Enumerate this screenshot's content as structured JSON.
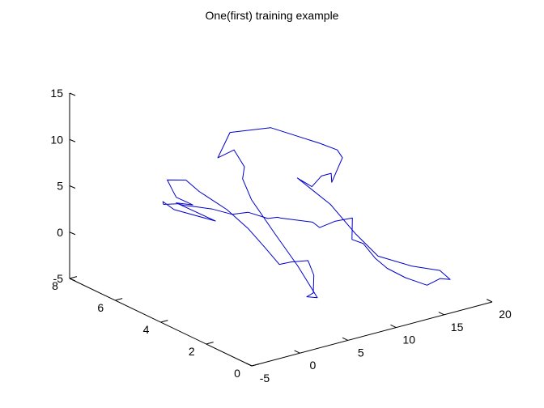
{
  "chart_data": {
    "type": "line",
    "title": "One(first) training example",
    "xlabel": "",
    "ylabel": "",
    "zlabel": "",
    "grid": false,
    "xlim": [
      -5,
      20
    ],
    "ylim": [
      0,
      8
    ],
    "zlim": [
      -5,
      15
    ],
    "x_ticks": [
      "-5",
      "0",
      "5",
      "10",
      "15",
      "20"
    ],
    "y_ticks": [
      "0",
      "2",
      "4",
      "6",
      "8"
    ],
    "z_ticks": [
      "-5",
      "0",
      "5",
      "10",
      "15"
    ],
    "line_color": "#0000cc",
    "series": [
      {
        "x": [
          -1.2,
          -1.0,
          0.0,
          1.0,
          1.8,
          2.6,
          3.6,
          4.4,
          4.3,
          4.0,
          3.8,
          4.9,
          5.0,
          5.2,
          5.0,
          4.2,
          4.7,
          5.6,
          5.7,
          5.2,
          6.7,
          8.8,
          10.8,
          11.7,
          12.0,
          11.6,
          13.2,
          13.6,
          13.8,
          13.0,
          13.6,
          14.3,
          15.0,
          16.4,
          17.4,
          18.0,
          17.2,
          16.3,
          15.0,
          14.3,
          14.0,
          13.7,
          13.0,
          12.8,
          10.5,
          9.4,
          8.9,
          6.3,
          6.2,
          5.9,
          4.8,
          4.1,
          3.0,
          2.2,
          1.5,
          1.0,
          0.5,
          0.2,
          -0.3,
          1.4,
          0.4,
          0.7,
          0.4,
          -0.4,
          -1.0,
          -1.2
        ],
        "y": [
          4.5,
          4.0,
          3.2,
          2.7,
          2.3,
          2.0,
          1.9,
          1.5,
          1.2,
          1.1,
          1.3,
          1.3,
          1.8,
          2.3,
          3.2,
          3.9,
          4.5,
          4.8,
          5.3,
          5.8,
          5.9,
          5.0,
          3.7,
          3.3,
          3.2,
          3.5,
          4.2,
          4.8,
          5.3,
          5.6,
          4.4,
          3.6,
          2.9,
          2.0,
          1.2,
          1.0,
          1.1,
          1.3,
          1.7,
          2.2,
          2.6,
          3.0,
          3.2,
          3.1,
          2.9,
          3.1,
          3.2,
          3.5,
          3.6,
          3.9,
          4.3,
          4.7,
          5.1,
          5.5,
          5.7,
          5.8,
          6.2,
          6.1,
          5.4,
          4.3,
          5.6,
          5.0,
          5.6,
          5.4,
          5.4,
          4.5
        ],
        "z": [
          8.7,
          8.0,
          6.7,
          5.0,
          3.2,
          1.5,
          1.6,
          2.0,
          0.8,
          -0.9,
          -1.5,
          -1.9,
          -0.7,
          0.3,
          2.7,
          5.8,
          7.2,
          7.9,
          9.1,
          7.8,
          10.0,
          11.0,
          10.3,
          9.8,
          9.0,
          6.1,
          5.8,
          4.7,
          2.9,
          3.7,
          2.1,
          -0.3,
          -2.1,
          -2.5,
          -2.3,
          -3.2,
          -3.0,
          -3.7,
          -3.0,
          -2.4,
          -1.7,
          -0.5,
          -0.1,
          2.4,
          2.9,
          2.3,
          2.9,
          3.7,
          3.7,
          3.3,
          3.8,
          3.3,
          3.7,
          3.7,
          3.8,
          4.0,
          3.6,
          4.1,
          4.2,
          3.8,
          4.5,
          4.9,
          5.1,
          6.2,
          7.6,
          8.7
        ]
      }
    ]
  }
}
